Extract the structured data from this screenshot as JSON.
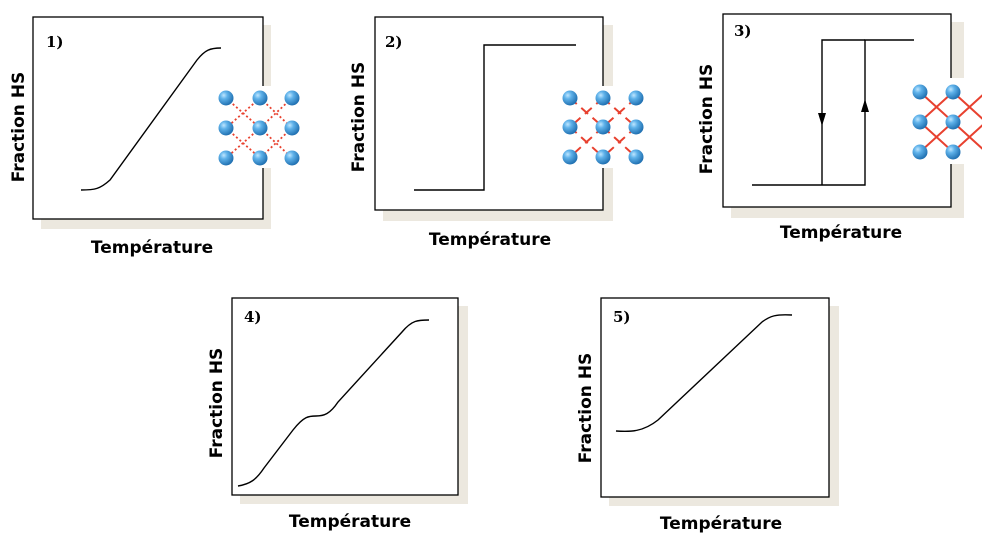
{
  "panels": [
    {
      "id": "p1",
      "number": "1)",
      "ylabel": "Fraction HS",
      "xlabel": "Température",
      "curve": "gradual",
      "lattice": "dotted"
    },
    {
      "id": "p2",
      "number": "2)",
      "ylabel": "Fraction HS",
      "xlabel": "Température",
      "curve": "abrupt",
      "lattice": "dashed"
    },
    {
      "id": "p3",
      "number": "3)",
      "ylabel": "Fraction HS",
      "xlabel": "Température",
      "curve": "hysteresis",
      "lattice": "solid"
    },
    {
      "id": "p4",
      "number": "4)",
      "ylabel": "Fraction HS",
      "xlabel": "Température",
      "curve": "two-step",
      "lattice": "none"
    },
    {
      "id": "p5",
      "number": "5)",
      "ylabel": "Fraction HS",
      "xlabel": "Température",
      "curve": "incomplete",
      "lattice": "none"
    }
  ],
  "colors": {
    "sphere": "#3a97d8",
    "sphere_highlight": "#9fd6ff",
    "link": "#e8412f",
    "shadow": "#ece8df",
    "frame": "#000000"
  }
}
